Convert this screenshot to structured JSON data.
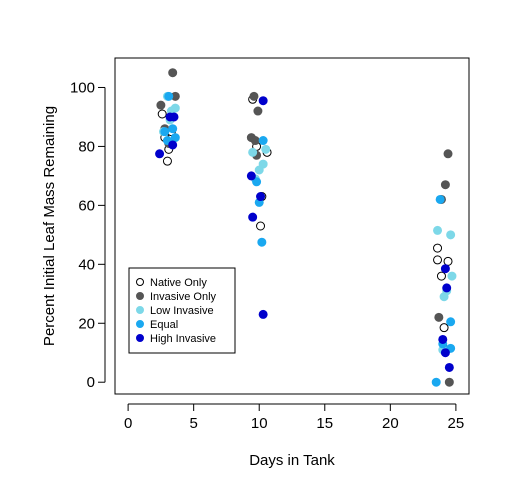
{
  "chart_data": {
    "type": "scatter",
    "xlabel": "Days in Tank",
    "ylabel": "Percent Initial Leaf Mass Remaining",
    "xlim": [
      -1,
      26
    ],
    "ylim": [
      -4,
      110
    ],
    "x_ticks": [
      0,
      5,
      10,
      15,
      20,
      25
    ],
    "y_ticks": [
      0,
      20,
      40,
      60,
      80,
      100
    ],
    "legend_position": "bottom-left",
    "grid": false,
    "series": [
      {
        "name": "Native Only",
        "color": "#000000",
        "filled": false,
        "points": [
          [
            2.6,
            91
          ],
          [
            2.8,
            83
          ],
          [
            3.0,
            75
          ],
          [
            3.1,
            79
          ],
          [
            3.3,
            85
          ],
          [
            9.5,
            96
          ],
          [
            9.8,
            80
          ],
          [
            10.2,
            63
          ],
          [
            10.1,
            53
          ],
          [
            10.6,
            78
          ],
          [
            23.6,
            45.5
          ],
          [
            23.6,
            41.5
          ],
          [
            23.9,
            36
          ],
          [
            24.1,
            18.5
          ],
          [
            24.4,
            41
          ],
          [
            24.2,
            11
          ]
        ]
      },
      {
        "name": "Invasive Only",
        "color": "#555555",
        "filled": true,
        "points": [
          [
            2.5,
            94
          ],
          [
            2.8,
            86
          ],
          [
            3.1,
            81
          ],
          [
            3.4,
            105
          ],
          [
            3.6,
            97
          ],
          [
            9.4,
            83
          ],
          [
            9.6,
            97
          ],
          [
            9.7,
            82
          ],
          [
            9.9,
            92
          ],
          [
            9.8,
            77
          ],
          [
            23.7,
            22
          ],
          [
            23.9,
            62
          ],
          [
            24.2,
            67
          ],
          [
            24.4,
            77.5
          ],
          [
            24.5,
            0
          ]
        ]
      },
      {
        "name": "Low Invasive",
        "color": "#7dd8e8",
        "filled": true,
        "points": [
          [
            2.7,
            85
          ],
          [
            3.0,
            97
          ],
          [
            3.2,
            89
          ],
          [
            3.3,
            92
          ],
          [
            3.6,
            93
          ],
          [
            9.7,
            69
          ],
          [
            10.0,
            72
          ],
          [
            10.3,
            74
          ],
          [
            10.5,
            79
          ],
          [
            9.5,
            78
          ],
          [
            23.6,
            51.5
          ],
          [
            24.1,
            29
          ],
          [
            24.3,
            31
          ],
          [
            24.6,
            50
          ],
          [
            24.7,
            36
          ],
          [
            24.0,
            11
          ]
        ]
      },
      {
        "name": "Equal",
        "color": "#1aa8f0",
        "filled": true,
        "points": [
          [
            2.8,
            85
          ],
          [
            3.0,
            82
          ],
          [
            3.4,
            86
          ],
          [
            3.1,
            97
          ],
          [
            3.6,
            83
          ],
          [
            9.8,
            68
          ],
          [
            10.0,
            61
          ],
          [
            10.3,
            82
          ],
          [
            10.2,
            47.5
          ],
          [
            23.5,
            0
          ],
          [
            23.8,
            62
          ],
          [
            24.0,
            13
          ],
          [
            24.6,
            20.5
          ],
          [
            24.6,
            11.5
          ]
        ]
      },
      {
        "name": "High Invasive",
        "color": "#0000cc",
        "filled": true,
        "points": [
          [
            2.4,
            77.5
          ],
          [
            3.2,
            90
          ],
          [
            3.4,
            80.5
          ],
          [
            3.5,
            90
          ],
          [
            9.4,
            70
          ],
          [
            9.5,
            56
          ],
          [
            10.1,
            63
          ],
          [
            10.3,
            95.5
          ],
          [
            10.3,
            23
          ],
          [
            24.0,
            14.5
          ],
          [
            24.2,
            38.5
          ],
          [
            24.3,
            32
          ],
          [
            24.5,
            5
          ],
          [
            24.2,
            10
          ]
        ]
      }
    ]
  }
}
